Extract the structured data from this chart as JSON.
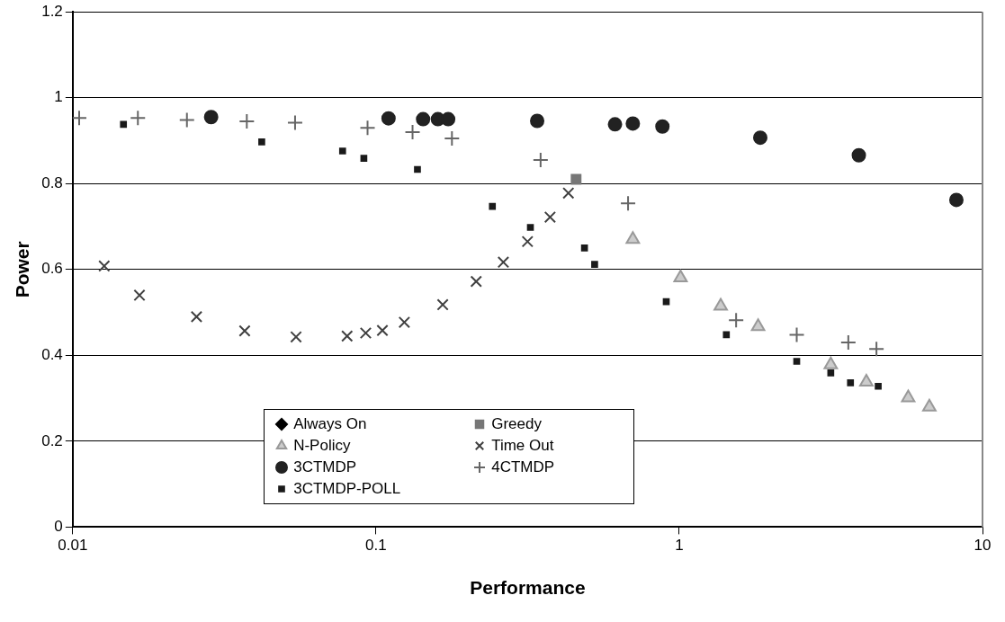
{
  "chart_data": {
    "type": "scatter",
    "xlabel": "Performance",
    "ylabel": "Power",
    "log": "x",
    "xlim": [
      0.01,
      10
    ],
    "xticks": [
      0.01,
      0.1,
      1,
      10
    ],
    "ylim": [
      0,
      1.2
    ],
    "yticks": [
      0,
      0.2,
      0.4,
      0.6,
      0.8,
      1,
      1.2
    ],
    "grid": "y",
    "legend": "bottom",
    "series": [
      {
        "name": "Always On",
        "color": "#000000",
        "marker": "diamond"
      },
      {
        "name": "Greedy",
        "color": "#777777",
        "marker": "square",
        "x": [
          0.457
        ],
        "values": [
          0.81
        ]
      },
      {
        "name": "N-Policy",
        "color": "#999999",
        "marker": "triangle",
        "x": [
          0.703,
          1.01,
          1.37,
          1.82,
          3.16,
          4.14,
          5.69,
          6.68
        ],
        "values": [
          0.67,
          0.581,
          0.515,
          0.467,
          0.378,
          0.338,
          0.301,
          0.28
        ]
      },
      {
        "name": "Time Out",
        "color": "#404040",
        "marker": "x",
        "x": [
          0.0127,
          0.0166,
          0.0256,
          0.0369,
          0.0545,
          0.0803,
          0.0925,
          0.105,
          0.124,
          0.166,
          0.214,
          0.263,
          0.316,
          0.375,
          0.431
        ],
        "values": [
          0.608,
          0.54,
          0.49,
          0.457,
          0.443,
          0.445,
          0.452,
          0.458,
          0.477,
          0.518,
          0.572,
          0.617,
          0.665,
          0.722,
          0.778
        ]
      },
      {
        "name": "3CTMDP",
        "color": "#222222",
        "marker": "circle",
        "x": [
          0.0286,
          0.11,
          0.143,
          0.16,
          0.173,
          0.34,
          0.614,
          0.703,
          0.88,
          1.85,
          3.91,
          8.2
        ],
        "values": [
          0.955,
          0.952,
          0.95,
          0.95,
          0.95,
          0.946,
          0.938,
          0.94,
          0.933,
          0.907,
          0.866,
          0.762
        ]
      },
      {
        "name": "4CTMDP",
        "color": "#666666",
        "marker": "plus",
        "x": [
          0.0105,
          0.0164,
          0.0238,
          0.0375,
          0.0541,
          0.0938,
          0.132,
          0.178,
          0.349,
          0.678,
          1.54,
          2.44,
          3.61,
          4.47
        ],
        "values": [
          0.953,
          0.953,
          0.948,
          0.945,
          0.942,
          0.93,
          0.92,
          0.905,
          0.855,
          0.754,
          0.482,
          0.448,
          0.43,
          0.415
        ]
      },
      {
        "name": "3CTMDP-POLL",
        "color": "#1a1a1a",
        "marker": "square",
        "x": [
          0.0147,
          0.042,
          0.0776,
          0.0912,
          0.137,
          0.242,
          0.323,
          0.487,
          0.526,
          0.906,
          1.43,
          2.44,
          3.16,
          3.67,
          4.53
        ],
        "values": [
          0.938,
          0.897,
          0.876,
          0.859,
          0.833,
          0.747,
          0.698,
          0.65,
          0.612,
          0.525,
          0.448,
          0.386,
          0.359,
          0.336,
          0.328
        ]
      }
    ]
  }
}
